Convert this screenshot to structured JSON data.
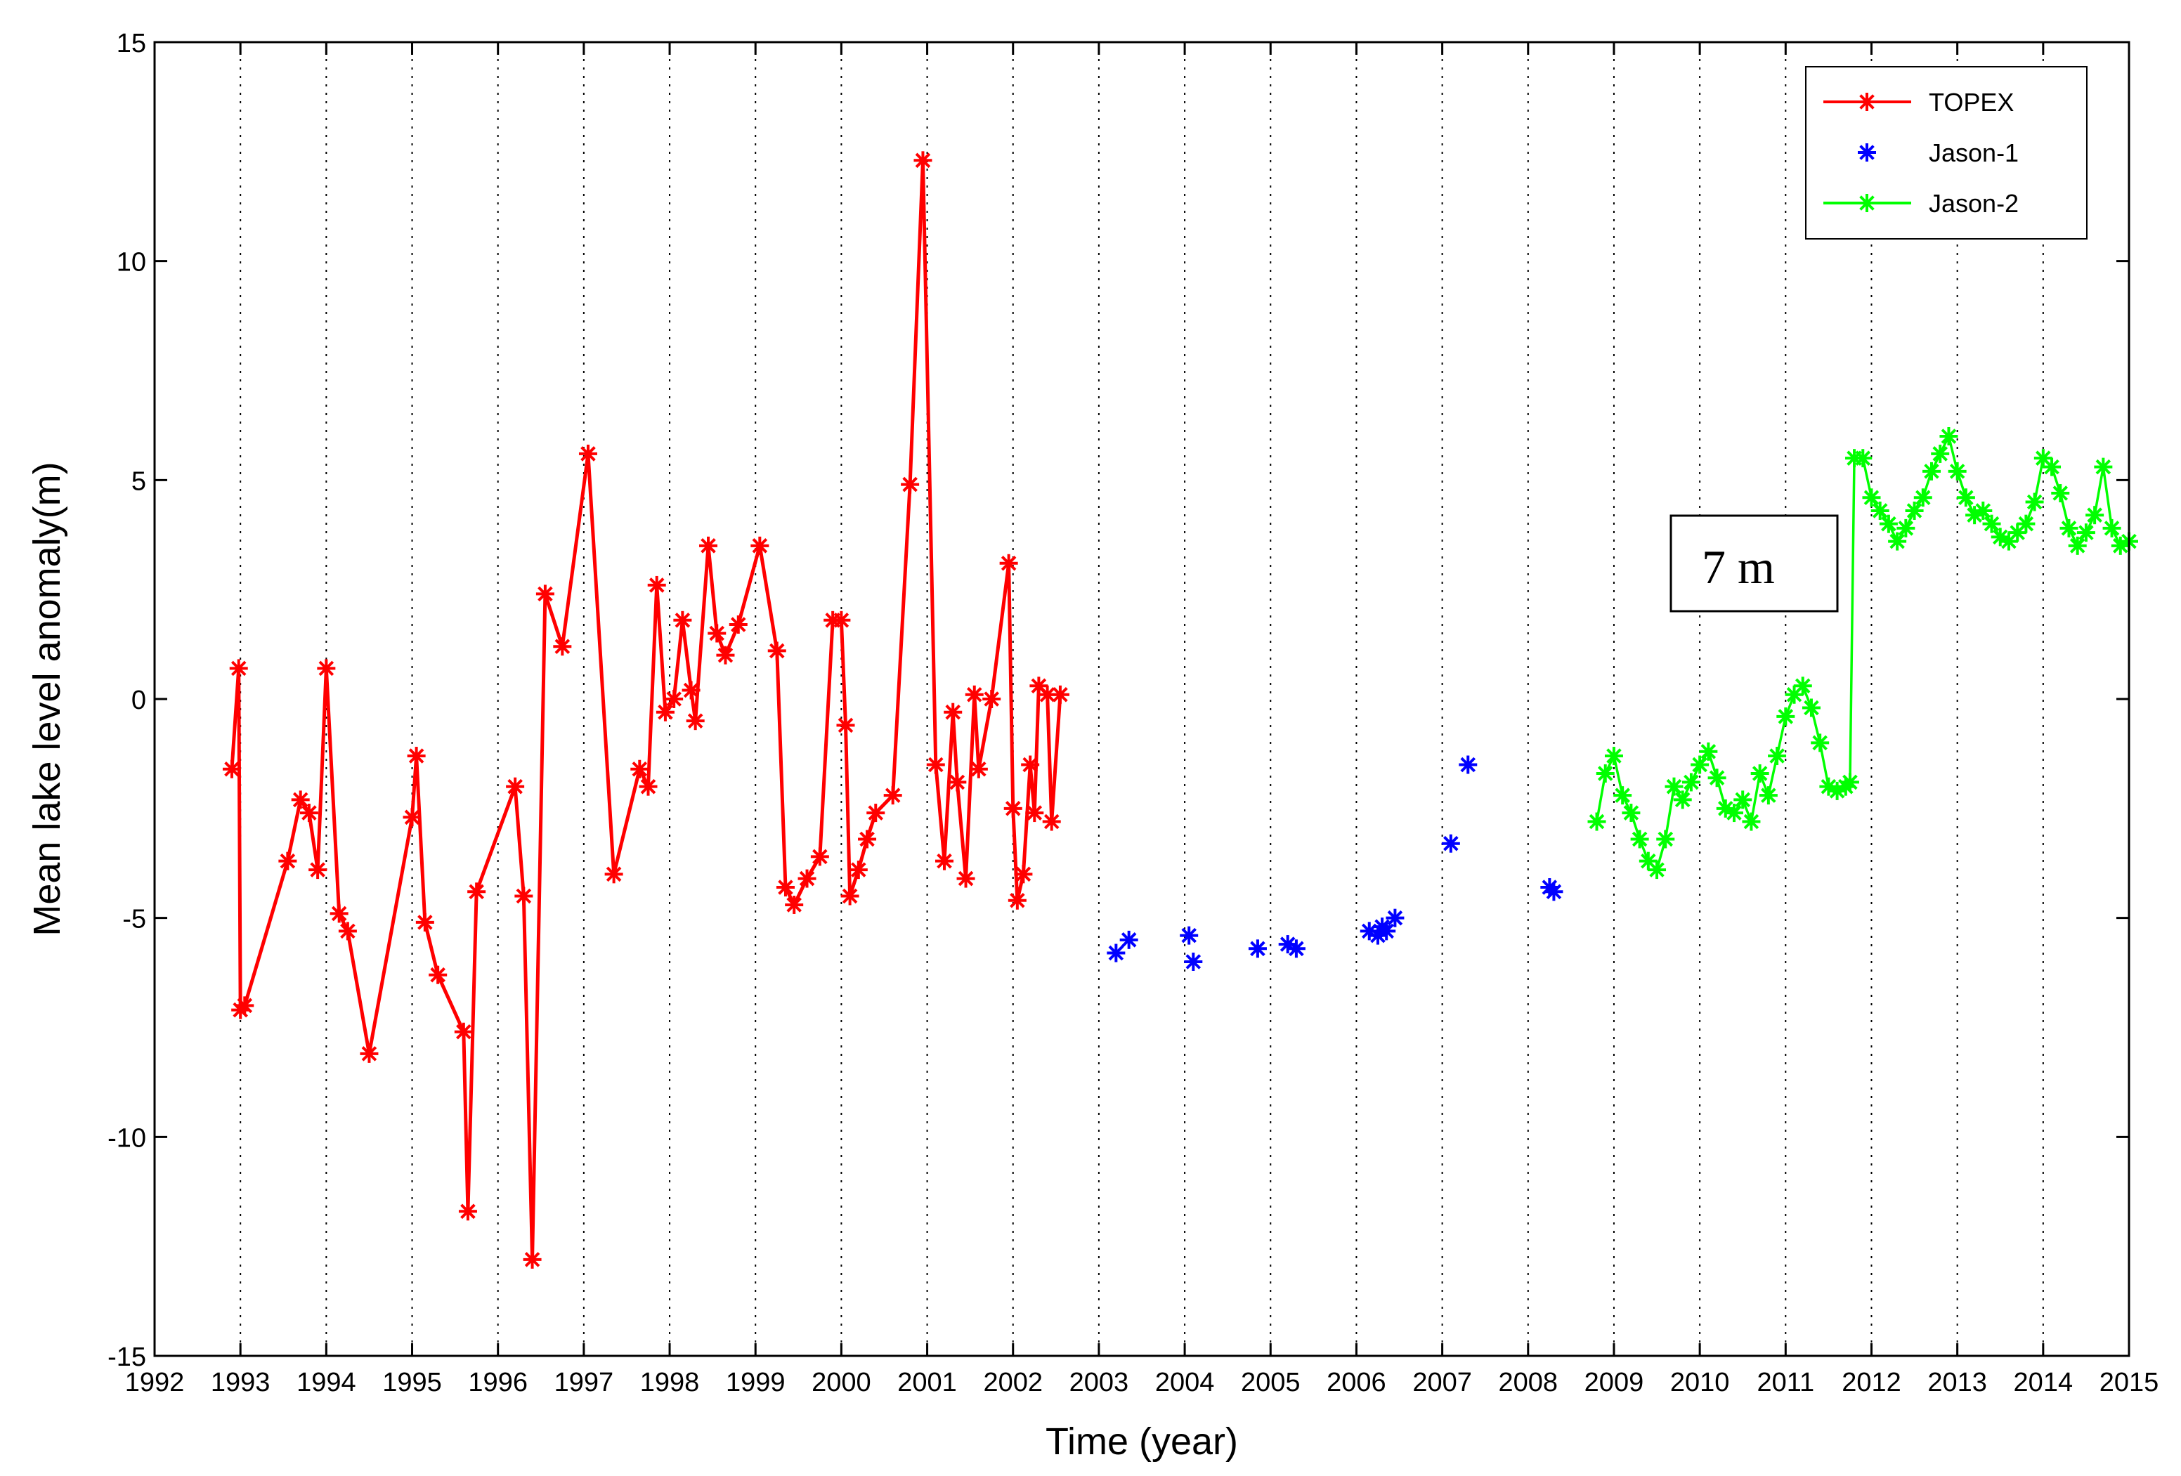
{
  "chart_data": {
    "type": "line",
    "title": "",
    "xlabel": "Time (year)",
    "ylabel": "Mean lake level anomaly(m)",
    "xlim": [
      1992,
      2015
    ],
    "ylim": [
      -15,
      15
    ],
    "xticks": [
      1992,
      1993,
      1994,
      1995,
      1996,
      1997,
      1998,
      1999,
      2000,
      2001,
      2002,
      2003,
      2004,
      2005,
      2006,
      2007,
      2008,
      2009,
      2010,
      2011,
      2012,
      2013,
      2014,
      2015
    ],
    "yticks": [
      -15,
      -10,
      -5,
      0,
      5,
      10,
      15
    ],
    "grid": "x-dotted",
    "legend_position": "top-right",
    "annotation": {
      "text": "7 m",
      "x": 2010.6,
      "y": 3.3
    },
    "series": [
      {
        "name": "TOPEX",
        "color": "#ff0000",
        "style": "line-with-star-markers",
        "x": [
          1992.9,
          1992.98,
          1993.0,
          1993.05,
          1993.55,
          1993.7,
          1993.8,
          1993.9,
          1994.0,
          1994.15,
          1994.25,
          1994.5,
          1995.0,
          1995.05,
          1995.15,
          1995.3,
          1995.6,
          1995.65,
          1995.75,
          1996.2,
          1996.3,
          1996.4,
          1996.55,
          1996.75,
          1997.05,
          1997.35,
          1997.65,
          1997.75,
          1997.85,
          1997.95,
          1998.05,
          1998.15,
          1998.25,
          1998.3,
          1998.45,
          1998.55,
          1998.65,
          1998.8,
          1999.05,
          1999.25,
          1999.35,
          1999.45,
          1999.6,
          1999.75,
          1999.9,
          2000.0,
          2000.05,
          2000.1,
          2000.2,
          2000.3,
          2000.4,
          2000.6,
          2000.8,
          2000.95,
          2001.1,
          2001.2,
          2001.3,
          2001.35,
          2001.45,
          2001.55,
          2001.6,
          2001.75,
          2001.95,
          2002.0,
          2002.05,
          2002.12,
          2002.2,
          2002.25,
          2002.3,
          2002.4,
          2002.45,
          2002.55
        ],
        "y": [
          -1.6,
          0.7,
          -7.1,
          -7.0,
          -3.7,
          -2.3,
          -2.6,
          -3.9,
          0.7,
          -4.9,
          -5.3,
          -8.1,
          -2.7,
          -1.3,
          -5.1,
          -6.3,
          -7.6,
          -11.7,
          -4.4,
          -2.0,
          -4.5,
          -12.8,
          2.4,
          1.2,
          5.6,
          -4.0,
          -1.6,
          -2.0,
          2.6,
          -0.3,
          0.0,
          1.8,
          0.2,
          -0.5,
          3.5,
          1.5,
          1.0,
          1.7,
          3.5,
          1.1,
          -4.3,
          -4.7,
          -4.1,
          -3.6,
          1.8,
          1.8,
          -0.6,
          -4.5,
          -3.9,
          -3.2,
          -2.6,
          -2.2,
          4.9,
          12.3,
          -1.5,
          -3.7,
          -0.3,
          -1.9,
          -4.1,
          0.1,
          -1.6,
          0.0,
          3.1,
          -2.5,
          -4.6,
          -4.0,
          -1.5,
          -2.6,
          0.3,
          0.1,
          -2.8,
          0.1
        ]
      },
      {
        "name": "Jason-1",
        "color": "#0000ff",
        "style": "star-markers",
        "x": [
          2003.2,
          2003.35,
          2004.05,
          2004.1,
          2004.85,
          2005.2,
          2005.3,
          2006.15,
          2006.25,
          2006.3,
          2006.35,
          2006.45,
          2007.1,
          2007.3,
          2008.25,
          2008.3
        ],
        "y": [
          -5.8,
          -5.5,
          -5.4,
          -6.0,
          -5.7,
          -5.6,
          -5.7,
          -5.3,
          -5.4,
          -5.2,
          -5.3,
          -5.0,
          -3.3,
          -1.5,
          -4.3,
          -4.4
        ]
      },
      {
        "name": "Jason-2",
        "color": "#00ff00",
        "style": "line-with-star-markers",
        "x": [
          2008.8,
          2008.9,
          2009.0,
          2009.1,
          2009.2,
          2009.3,
          2009.4,
          2009.5,
          2009.6,
          2009.7,
          2009.8,
          2009.9,
          2010.0,
          2010.1,
          2010.2,
          2010.3,
          2010.4,
          2010.5,
          2010.6,
          2010.7,
          2010.8,
          2010.9,
          2011.0,
          2011.1,
          2011.2,
          2011.3,
          2011.4,
          2011.5,
          2011.6,
          2011.7,
          2011.75,
          2011.8,
          2011.9,
          2012.0,
          2012.1,
          2012.2,
          2012.3,
          2012.4,
          2012.5,
          2012.6,
          2012.7,
          2012.8,
          2012.9,
          2013.0,
          2013.1,
          2013.2,
          2013.3,
          2013.4,
          2013.5,
          2013.6,
          2013.7,
          2013.8,
          2013.9,
          2014.0,
          2014.1,
          2014.2,
          2014.3,
          2014.4,
          2014.5,
          2014.6,
          2014.7,
          2014.8,
          2014.9,
          2015.0
        ],
        "y": [
          -2.8,
          -1.7,
          -1.3,
          -2.2,
          -2.6,
          -3.2,
          -3.7,
          -3.9,
          -3.2,
          -2.0,
          -2.3,
          -1.9,
          -1.5,
          -1.2,
          -1.8,
          -2.5,
          -2.6,
          -2.3,
          -2.8,
          -1.7,
          -2.2,
          -1.3,
          -0.4,
          0.1,
          0.3,
          -0.2,
          -1.0,
          -2.0,
          -2.1,
          -2.0,
          -1.9,
          5.5,
          5.5,
          4.6,
          4.3,
          4.0,
          3.6,
          3.9,
          4.3,
          4.6,
          5.2,
          5.6,
          6.0,
          5.2,
          4.6,
          4.2,
          4.3,
          4.0,
          3.7,
          3.6,
          3.8,
          4.0,
          4.5,
          5.5,
          5.3,
          4.7,
          3.9,
          3.5,
          3.8,
          4.2,
          5.3,
          3.9,
          3.5,
          3.6
        ]
      }
    ]
  }
}
